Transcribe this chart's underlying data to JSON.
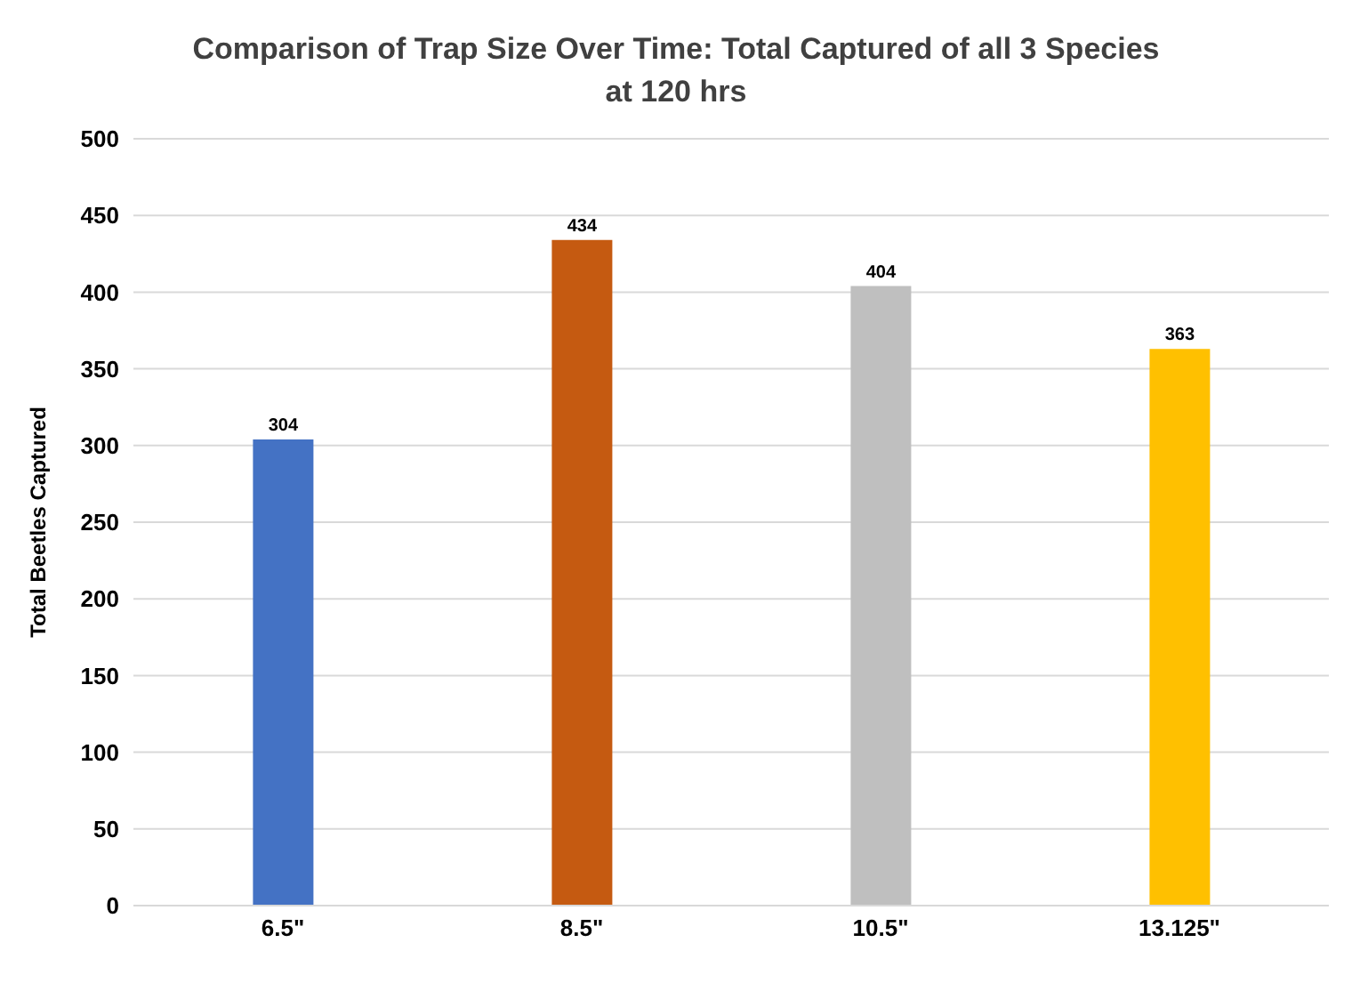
{
  "chart_data": {
    "type": "bar",
    "title": "Comparison of Trap Size Over Time: Total Captured of all 3 Species at 120 hrs",
    "ylabel": "Total Beetles Captured",
    "categories": [
      "6.5\"",
      "8.5\"",
      "10.5\"",
      "13.125\""
    ],
    "values": [
      304,
      434,
      404,
      363
    ],
    "colors": [
      "#4472c4",
      "#c55a11",
      "#bfbfbf",
      "#ffc000"
    ],
    "ylim": [
      0,
      500
    ],
    "yticks": [
      0,
      50,
      100,
      150,
      200,
      250,
      300,
      350,
      400,
      450,
      500
    ],
    "grid": "y",
    "data_labels": true
  }
}
